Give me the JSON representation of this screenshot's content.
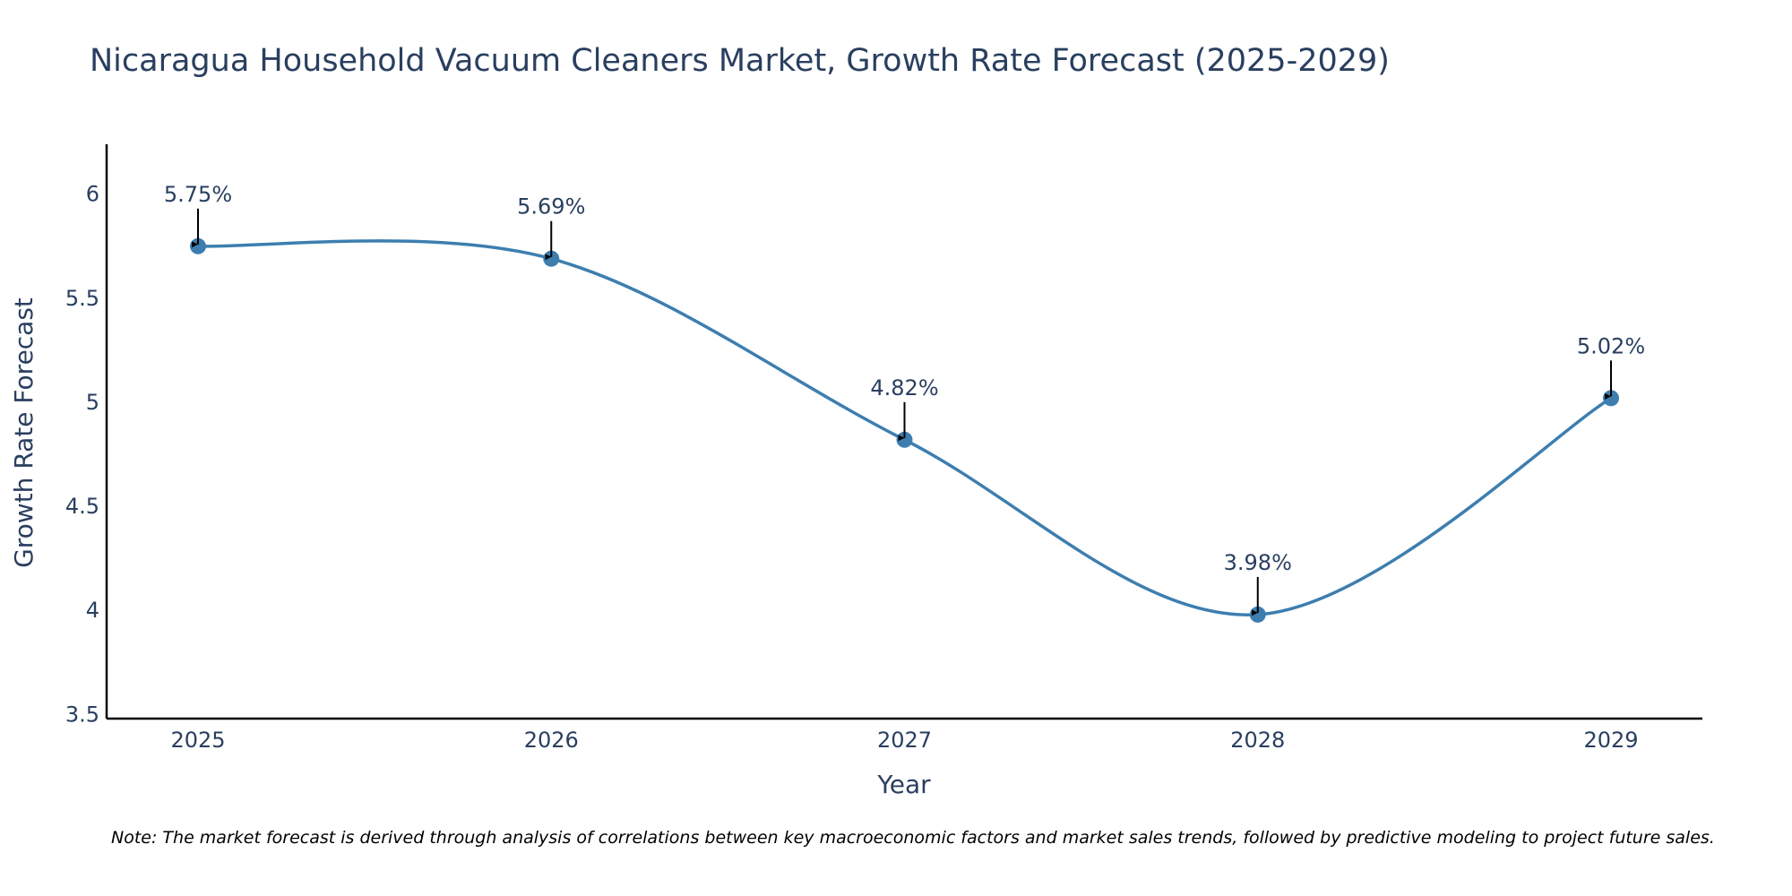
{
  "chart_data": {
    "type": "line",
    "title": "Nicaragua Household Vacuum Cleaners Market, Growth Rate Forecast (2025-2029)",
    "xlabel": "Year",
    "ylabel": "Growth Rate Forecast",
    "categories": [
      "2025",
      "2026",
      "2027",
      "2028",
      "2029"
    ],
    "series": [
      {
        "name": "Growth Rate Forecast",
        "values": [
          5.75,
          5.69,
          4.82,
          3.98,
          5.02
        ],
        "labels": [
          "5.75%",
          "5.69%",
          "4.82%",
          "3.98%",
          "5.02%"
        ]
      }
    ],
    "ylim": [
      3.48,
      6.24
    ],
    "yticks": [
      3.5,
      4,
      4.5,
      5,
      5.5,
      6
    ],
    "ytick_labels": [
      "3.5",
      "4",
      "4.5",
      "5",
      "5.5",
      "6"
    ],
    "line_shape": "spline",
    "grid": false,
    "note": "Note: The market forecast is derived through analysis of correlations between key macroeconomic factors and market sales trends, followed by predictive modeling to project future sales."
  },
  "colors": {
    "line": "#3d7eaf",
    "marker": "#3d7eaf",
    "arrow": "#000000",
    "axis": "#000000",
    "text": "#2a3f5f"
  }
}
